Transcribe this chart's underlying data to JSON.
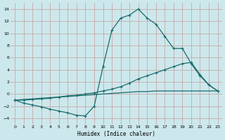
{
  "xlabel": "Humidex (Indice chaleur)",
  "background_color": "#cce8ec",
  "grid_color": "#c8a8a8",
  "line_color": "#1a6b6b",
  "xlim": [
    -0.5,
    23.5
  ],
  "ylim": [
    -5,
    15
  ],
  "xticks": [
    0,
    1,
    2,
    3,
    4,
    5,
    6,
    7,
    8,
    9,
    10,
    11,
    12,
    13,
    14,
    15,
    16,
    17,
    18,
    19,
    20,
    21,
    22,
    23
  ],
  "yticks": [
    -4,
    -2,
    0,
    2,
    4,
    6,
    8,
    10,
    12,
    14
  ],
  "line1_x": [
    0,
    1,
    2,
    3,
    4,
    5,
    6,
    7,
    8,
    9,
    10,
    11,
    12,
    13,
    14,
    15,
    16,
    17,
    18,
    19,
    20,
    21,
    22,
    23
  ],
  "line1_y": [
    -1.0,
    -1.5,
    -1.8,
    -2.1,
    -2.5,
    -2.8,
    -3.1,
    -3.5,
    -3.6,
    -2.0,
    4.5,
    10.5,
    12.5,
    13.0,
    14.0,
    12.5,
    11.5,
    9.5,
    7.5,
    7.5,
    5.0,
    3.0,
    1.5,
    0.5
  ],
  "line2_x": [
    0,
    1,
    2,
    3,
    4,
    5,
    6,
    7,
    8,
    9,
    10,
    11,
    12,
    13,
    14,
    15,
    16,
    17,
    18,
    19,
    20,
    21,
    22,
    23
  ],
  "line2_y": [
    -1.0,
    -1.0,
    -0.9,
    -0.8,
    -0.7,
    -0.5,
    -0.3,
    -0.2,
    0.0,
    0.2,
    0.5,
    0.8,
    1.2,
    1.8,
    2.5,
    3.0,
    3.5,
    4.0,
    4.5,
    5.0,
    5.2,
    3.2,
    1.5,
    0.5
  ],
  "line3_x": [
    0,
    1,
    2,
    3,
    4,
    5,
    6,
    7,
    8,
    9,
    10,
    11,
    12,
    13,
    14,
    15,
    16,
    17,
    18,
    19,
    20,
    21,
    22,
    23
  ],
  "line3_y": [
    -1.0,
    -0.9,
    -0.8,
    -0.7,
    -0.6,
    -0.5,
    -0.4,
    -0.3,
    -0.2,
    -0.1,
    0.0,
    0.1,
    0.2,
    0.3,
    0.4,
    0.4,
    0.5,
    0.5,
    0.5,
    0.5,
    0.5,
    0.5,
    0.5,
    0.5
  ]
}
